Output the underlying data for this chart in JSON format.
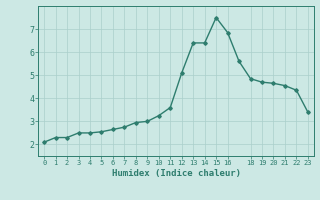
{
  "x": [
    0,
    1,
    2,
    3,
    4,
    5,
    6,
    7,
    8,
    9,
    10,
    11,
    12,
    13,
    14,
    15,
    16,
    17,
    18,
    19,
    20,
    21,
    22,
    23
  ],
  "y": [
    2.1,
    2.3,
    2.3,
    2.5,
    2.5,
    2.55,
    2.65,
    2.75,
    2.95,
    3.0,
    3.25,
    3.6,
    5.1,
    6.4,
    6.4,
    7.5,
    6.85,
    5.6,
    4.85,
    4.7,
    4.65,
    4.55,
    4.35,
    3.4
  ],
  "xlim": [
    -0.5,
    23.5
  ],
  "ylim": [
    1.5,
    8.0
  ],
  "yticks": [
    2,
    3,
    4,
    5,
    6,
    7
  ],
  "xticks": [
    0,
    1,
    2,
    3,
    4,
    5,
    6,
    7,
    8,
    9,
    10,
    11,
    12,
    13,
    14,
    15,
    16,
    18,
    19,
    20,
    21,
    22,
    23
  ],
  "xlabel": "Humidex (Indice chaleur)",
  "line_color": "#2e7d6e",
  "marker": "D",
  "marker_size": 1.8,
  "bg_color": "#cce8e4",
  "grid_color": "#aacfcb",
  "axis_color": "#2e7d6e",
  "tick_label_color": "#2e7d6e",
  "xlabel_color": "#2e7d6e",
  "linewidth": 1.0
}
